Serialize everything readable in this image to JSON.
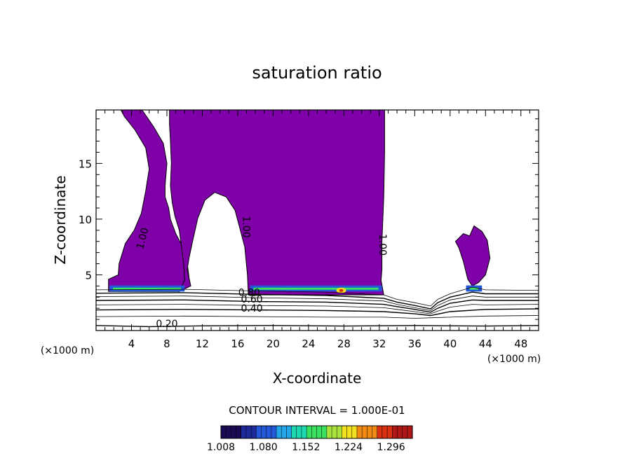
{
  "chart_data": {
    "type": "heatmap",
    "title": "saturation ratio",
    "xlabel": "X-coordinate",
    "ylabel": "Z-coordinate",
    "x_unit_left": "(×1000 m)",
    "x_unit_right": "(×1000 m)",
    "xlim": [
      0,
      50
    ],
    "ylim": [
      0,
      19.8
    ],
    "xticks": [
      4,
      8,
      12,
      16,
      20,
      24,
      28,
      32,
      36,
      40,
      44,
      48
    ],
    "xtick_labels": [
      "4",
      "8",
      "12",
      "16",
      "20",
      "24",
      "28",
      "32",
      "36",
      "40",
      "44",
      "48"
    ],
    "yticks": [
      5,
      10,
      15
    ],
    "ytick_labels": [
      "5",
      "10",
      "15"
    ],
    "contour_interval_text": "CONTOUR INTERVAL = 1.000E-01",
    "contour_labels": [
      {
        "text": "1.00",
        "x": 5.6,
        "z": 8.2,
        "angle": -75
      },
      {
        "text": "1.00",
        "x": 16.6,
        "z": 9.3,
        "angle": 90
      },
      {
        "text": "1.00",
        "x": 32.0,
        "z": 7.7,
        "angle": 90
      },
      {
        "text": "0.80",
        "x": 17.3,
        "z": 3.1,
        "angle": 0
      },
      {
        "text": "0.60",
        "x": 17.6,
        "z": 2.5,
        "angle": 0
      },
      {
        "text": "0.40",
        "x": 17.6,
        "z": 1.7,
        "angle": 0
      },
      {
        "text": "0.20",
        "x": 8.0,
        "z": 0.3,
        "angle": 0
      }
    ],
    "supersaturated_regions": [
      {
        "name": "main-plume",
        "outline": [
          [
            2.8,
            19.8
          ],
          [
            5.2,
            19.8
          ],
          [
            6.5,
            18.3
          ],
          [
            7.6,
            16.8
          ],
          [
            8.0,
            15.0
          ],
          [
            7.8,
            13.0
          ],
          [
            7.8,
            12.0
          ],
          [
            8.2,
            11.0
          ],
          [
            8.4,
            10.0
          ],
          [
            9.0,
            8.7
          ],
          [
            9.8,
            7.5
          ],
          [
            10.3,
            6.0
          ],
          [
            10.5,
            4.8
          ],
          [
            10.2,
            3.9
          ],
          [
            9.4,
            3.5
          ],
          [
            1.4,
            3.5
          ],
          [
            1.4,
            4.6
          ],
          [
            2.5,
            5.0
          ],
          [
            2.6,
            6.0
          ],
          [
            3.3,
            7.8
          ],
          [
            4.3,
            9.0
          ],
          [
            5.1,
            10.5
          ],
          [
            5.6,
            12.5
          ],
          [
            6.0,
            14.5
          ],
          [
            5.6,
            16.4
          ],
          [
            4.4,
            18.0
          ],
          [
            3.2,
            19.2
          ]
        ]
      },
      {
        "name": "central-plume",
        "outline": [
          [
            8.3,
            19.8
          ],
          [
            32.6,
            19.8
          ],
          [
            32.6,
            16.0
          ],
          [
            32.5,
            12.0
          ],
          [
            32.3,
            8.0
          ],
          [
            32.3,
            5.5
          ],
          [
            32.2,
            4.5
          ],
          [
            32.5,
            3.2
          ],
          [
            17.2,
            3.2
          ],
          [
            17.1,
            5.0
          ],
          [
            16.8,
            7.5
          ],
          [
            16.3,
            9.0
          ],
          [
            15.7,
            10.8
          ],
          [
            14.7,
            12.0
          ],
          [
            13.4,
            12.4
          ],
          [
            12.3,
            11.7
          ],
          [
            11.5,
            10.1
          ],
          [
            10.9,
            8.0
          ],
          [
            10.5,
            6.5
          ],
          [
            10.3,
            5.5
          ],
          [
            10.7,
            4.0
          ],
          [
            9.4,
            3.5
          ],
          [
            10.0,
            4.5
          ],
          [
            9.9,
            6.0
          ],
          [
            9.6,
            7.8
          ],
          [
            9.4,
            9.0
          ],
          [
            8.9,
            10.3
          ],
          [
            8.6,
            11.5
          ],
          [
            8.4,
            13.0
          ],
          [
            8.5,
            15.0
          ],
          [
            8.4,
            17.0
          ],
          [
            8.3,
            18.5
          ]
        ]
      },
      {
        "name": "right-cell",
        "outline": [
          [
            40.6,
            8.0
          ],
          [
            41.5,
            8.7
          ],
          [
            42.2,
            8.5
          ],
          [
            42.7,
            9.4
          ],
          [
            43.6,
            8.9
          ],
          [
            44.2,
            8.1
          ],
          [
            44.5,
            6.5
          ],
          [
            44.0,
            5.0
          ],
          [
            43.2,
            4.3
          ],
          [
            42.5,
            4.0
          ],
          [
            42.0,
            4.6
          ],
          [
            41.5,
            6.2
          ],
          [
            41.0,
            7.4
          ]
        ]
      }
    ],
    "surface_layer_contours": [
      {
        "level": 0.9,
        "points": [
          [
            0,
            3.65
          ],
          [
            10,
            3.7
          ],
          [
            18,
            3.55
          ],
          [
            26,
            3.45
          ],
          [
            32.5,
            3.2
          ],
          [
            34,
            2.8
          ],
          [
            36,
            2.5
          ],
          [
            37.8,
            2.2
          ],
          [
            38.6,
            2.8
          ],
          [
            40,
            3.3
          ],
          [
            42.5,
            3.9
          ],
          [
            44,
            3.65
          ],
          [
            50,
            3.6
          ]
        ]
      },
      {
        "level": 0.8,
        "points": [
          [
            0,
            3.35
          ],
          [
            10,
            3.4
          ],
          [
            18,
            3.25
          ],
          [
            26,
            3.15
          ],
          [
            32.5,
            2.9
          ],
          [
            34,
            2.55
          ],
          [
            36,
            2.25
          ],
          [
            37.8,
            1.95
          ],
          [
            38.6,
            2.5
          ],
          [
            40,
            3.0
          ],
          [
            42.5,
            3.45
          ],
          [
            44,
            3.3
          ],
          [
            50,
            3.3
          ]
        ]
      },
      {
        "level": 0.7,
        "points": [
          [
            0,
            3.05
          ],
          [
            10,
            3.1
          ],
          [
            18,
            2.95
          ],
          [
            26,
            2.85
          ],
          [
            32.5,
            2.65
          ],
          [
            34,
            2.35
          ],
          [
            36,
            2.05
          ],
          [
            37.8,
            1.8
          ],
          [
            38.6,
            2.25
          ],
          [
            40,
            2.75
          ],
          [
            42.5,
            3.1
          ],
          [
            44,
            3.0
          ],
          [
            50,
            3.0
          ]
        ]
      },
      {
        "level": 0.6,
        "points": [
          [
            0,
            2.7
          ],
          [
            10,
            2.75
          ],
          [
            18,
            2.6
          ],
          [
            26,
            2.55
          ],
          [
            32.5,
            2.35
          ],
          [
            34,
            2.15
          ],
          [
            36,
            1.9
          ],
          [
            37.8,
            1.65
          ],
          [
            38.6,
            2.0
          ],
          [
            40,
            2.45
          ],
          [
            42.5,
            2.75
          ],
          [
            44,
            2.7
          ],
          [
            50,
            2.7
          ]
        ]
      },
      {
        "level": 0.5,
        "points": [
          [
            0,
            2.3
          ],
          [
            10,
            2.35
          ],
          [
            18,
            2.25
          ],
          [
            26,
            2.2
          ],
          [
            32.5,
            2.05
          ],
          [
            34,
            1.9
          ],
          [
            36,
            1.7
          ],
          [
            37.8,
            1.5
          ],
          [
            38.6,
            1.75
          ],
          [
            40,
            2.1
          ],
          [
            42.5,
            2.35
          ],
          [
            44,
            2.3
          ],
          [
            50,
            2.35
          ]
        ]
      },
      {
        "level": 0.4,
        "points": [
          [
            0,
            1.85
          ],
          [
            10,
            1.9
          ],
          [
            18,
            1.85
          ],
          [
            26,
            1.8
          ],
          [
            32.5,
            1.7
          ],
          [
            36,
            1.5
          ],
          [
            37.8,
            1.35
          ],
          [
            40,
            1.7
          ],
          [
            44,
            1.9
          ],
          [
            50,
            1.95
          ]
        ]
      },
      {
        "level": 0.3,
        "points": [
          [
            0,
            1.25
          ],
          [
            10,
            1.3
          ],
          [
            18,
            1.25
          ],
          [
            26,
            1.2
          ],
          [
            32.5,
            1.2
          ],
          [
            36,
            1.1
          ],
          [
            40,
            1.2
          ],
          [
            44,
            1.3
          ],
          [
            50,
            1.35
          ]
        ]
      },
      {
        "level": 0.2,
        "points": [
          [
            0,
            0.45
          ],
          [
            6,
            0.35
          ],
          [
            12,
            0.42
          ],
          [
            20,
            0.45
          ],
          [
            28,
            0.4
          ],
          [
            36,
            0.45
          ],
          [
            44,
            0.4
          ],
          [
            50,
            0.45
          ]
        ]
      }
    ],
    "max_region": {
      "x": 27.7,
      "z": 3.6
    },
    "colorbar": {
      "min": 1.008,
      "max": 1.332,
      "tick_values": [
        1.008,
        1.08,
        1.152,
        1.224,
        1.296
      ],
      "tick_labels": [
        "1.008",
        "1.080",
        "1.152",
        "1.224",
        "1.296"
      ],
      "colors": [
        "#1a0a55",
        "#1f2a9a",
        "#2358d8",
        "#22a6e8",
        "#1dd8b0",
        "#3ce060",
        "#a8e23a",
        "#f0e020",
        "#f08a10",
        "#d83010",
        "#b01818"
      ],
      "base_color": "#7f00a8"
    }
  }
}
